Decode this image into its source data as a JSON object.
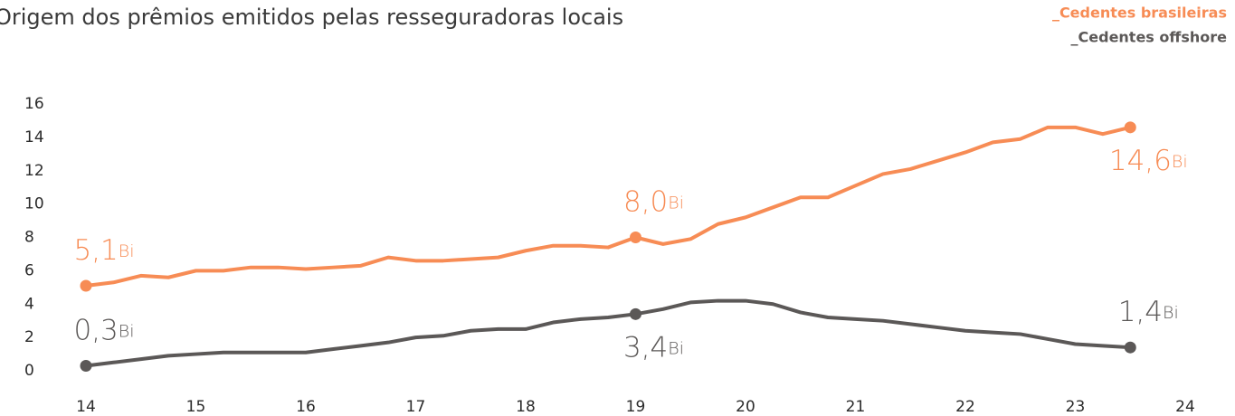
{
  "chart_data": {
    "type": "line",
    "title": "Origem dos prêmios emitidos pelas resseguradoras locais",
    "unit_label": "Bi",
    "x": [
      14,
      14.25,
      14.5,
      14.75,
      15,
      15.25,
      15.5,
      15.75,
      16,
      16.25,
      16.5,
      16.75,
      17,
      17.25,
      17.5,
      17.75,
      18,
      18.25,
      18.5,
      18.75,
      19,
      19.25,
      19.5,
      19.75,
      20,
      20.25,
      20.5,
      20.75,
      21,
      21.25,
      21.5,
      21.75,
      22,
      22.25,
      22.5,
      22.75,
      23,
      23.25,
      23.5
    ],
    "series": [
      {
        "name": "_Cedentes brasileiras",
        "color": "#f78c55",
        "values": [
          5.1,
          5.3,
          5.7,
          5.6,
          6.0,
          6.0,
          6.2,
          6.2,
          6.1,
          6.2,
          6.3,
          6.8,
          6.6,
          6.6,
          6.7,
          6.8,
          7.2,
          7.5,
          7.5,
          7.4,
          8.0,
          7.6,
          7.9,
          8.8,
          9.2,
          9.8,
          10.4,
          10.4,
          11.1,
          11.8,
          12.1,
          12.6,
          13.1,
          13.7,
          13.9,
          14.6,
          14.6,
          14.2,
          14.6
        ],
        "value_labels": [
          "5,1",
          null,
          null,
          null,
          null,
          null,
          null,
          null,
          null,
          null,
          null,
          null,
          null,
          null,
          null,
          null,
          null,
          null,
          null,
          null,
          "8,0",
          null,
          null,
          null,
          null,
          null,
          null,
          null,
          null,
          null,
          null,
          null,
          null,
          null,
          null,
          null,
          null,
          null,
          "14,6"
        ]
      },
      {
        "name": "_Cedentes offshore",
        "color": "#5b5857",
        "values": [
          0.3,
          0.5,
          0.7,
          0.9,
          1.0,
          1.1,
          1.1,
          1.1,
          1.1,
          1.3,
          1.5,
          1.7,
          2.0,
          2.1,
          2.4,
          2.5,
          2.5,
          2.9,
          3.1,
          3.2,
          3.4,
          3.7,
          4.1,
          4.2,
          4.2,
          4.0,
          3.5,
          3.2,
          3.1,
          3.0,
          2.8,
          2.6,
          2.4,
          2.3,
          2.2,
          1.9,
          1.6,
          1.5,
          1.4
        ],
        "value_labels": [
          "0,3",
          null,
          null,
          null,
          null,
          null,
          null,
          null,
          null,
          null,
          null,
          null,
          null,
          null,
          null,
          null,
          null,
          null,
          null,
          null,
          "3,4",
          null,
          null,
          null,
          null,
          null,
          null,
          null,
          null,
          null,
          null,
          null,
          null,
          null,
          null,
          null,
          null,
          null,
          "1,4"
        ]
      }
    ],
    "xlim": [
      14,
      24
    ],
    "xticks": [
      14,
      15,
      16,
      17,
      18,
      19,
      20,
      21,
      22,
      23,
      24
    ],
    "ylim": [
      0,
      16
    ],
    "yticks": [
      0,
      2,
      4,
      6,
      8,
      10,
      12,
      14,
      16
    ],
    "grid": false,
    "legend": "top-right"
  }
}
